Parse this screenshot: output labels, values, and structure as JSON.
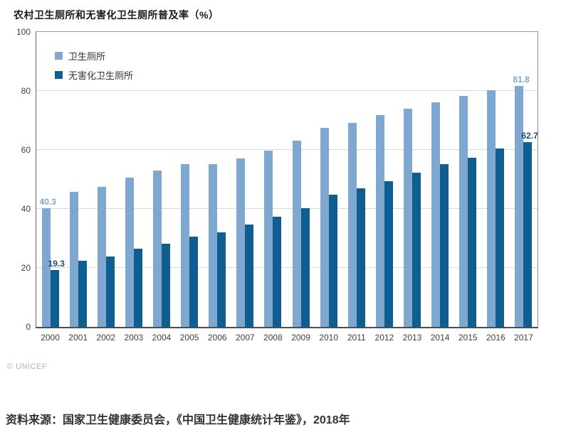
{
  "chart": {
    "title": "农村卫生厕所和无害化卫生厕所普及率（%）"
  },
  "watermark": "© UNICEF",
  "source_note": "资料来源：国家卫生健康委员会，《中国卫生健康统计年鉴》，2018年",
  "colors": {
    "series_light": "#7EA8CF",
    "series_dark": "#0F5E91",
    "gridline": "#D9D9D9",
    "axis_text": "#404040",
    "title_text": "#1A1A1A",
    "watermark_text": "#B3B3B3"
  },
  "chart_data": {
    "type": "bar",
    "title": "农村卫生厕所和无害化卫生厕所普及率（%）",
    "categories": [
      "2000",
      "2001",
      "2002",
      "2003",
      "2004",
      "2005",
      "2006",
      "2007",
      "2008",
      "2009",
      "2010",
      "2011",
      "2012",
      "2013",
      "2014",
      "2015",
      "2016",
      "2017"
    ],
    "series": [
      {
        "key": "sanitary-toilet",
        "name": "卫生厕所",
        "color": "#7EA8CF",
        "label_color": "#7EA8CF",
        "values": [
          40.3,
          45.8,
          47.5,
          50.5,
          53.0,
          55.3,
          55.1,
          57.1,
          59.7,
          63.1,
          67.4,
          69.2,
          71.7,
          74.1,
          76.1,
          78.4,
          80.3,
          81.8
        ]
      },
      {
        "key": "harmless-sanitary-toilet",
        "name": "无害化卫生厕所",
        "color": "#0F5E91",
        "label_color": "#1A4E78",
        "values": [
          19.3,
          22.5,
          23.8,
          26.4,
          28.3,
          30.6,
          32.1,
          34.6,
          37.4,
          40.3,
          44.9,
          47.0,
          49.5,
          52.3,
          55.1,
          57.4,
          60.4,
          62.7
        ]
      }
    ],
    "ylim": [
      0,
      100
    ],
    "yticks": [
      0,
      20,
      40,
      60,
      80,
      100
    ],
    "grid": true,
    "legend_position": "top-left-inside",
    "annotations": [
      {
        "series": 0,
        "category": "2000",
        "text": "40.3"
      },
      {
        "series": 1,
        "category": "2000",
        "text": "19.3"
      },
      {
        "series": 0,
        "category": "2017",
        "text": "81.8"
      },
      {
        "series": 1,
        "category": "2017",
        "text": "62.7"
      }
    ]
  }
}
